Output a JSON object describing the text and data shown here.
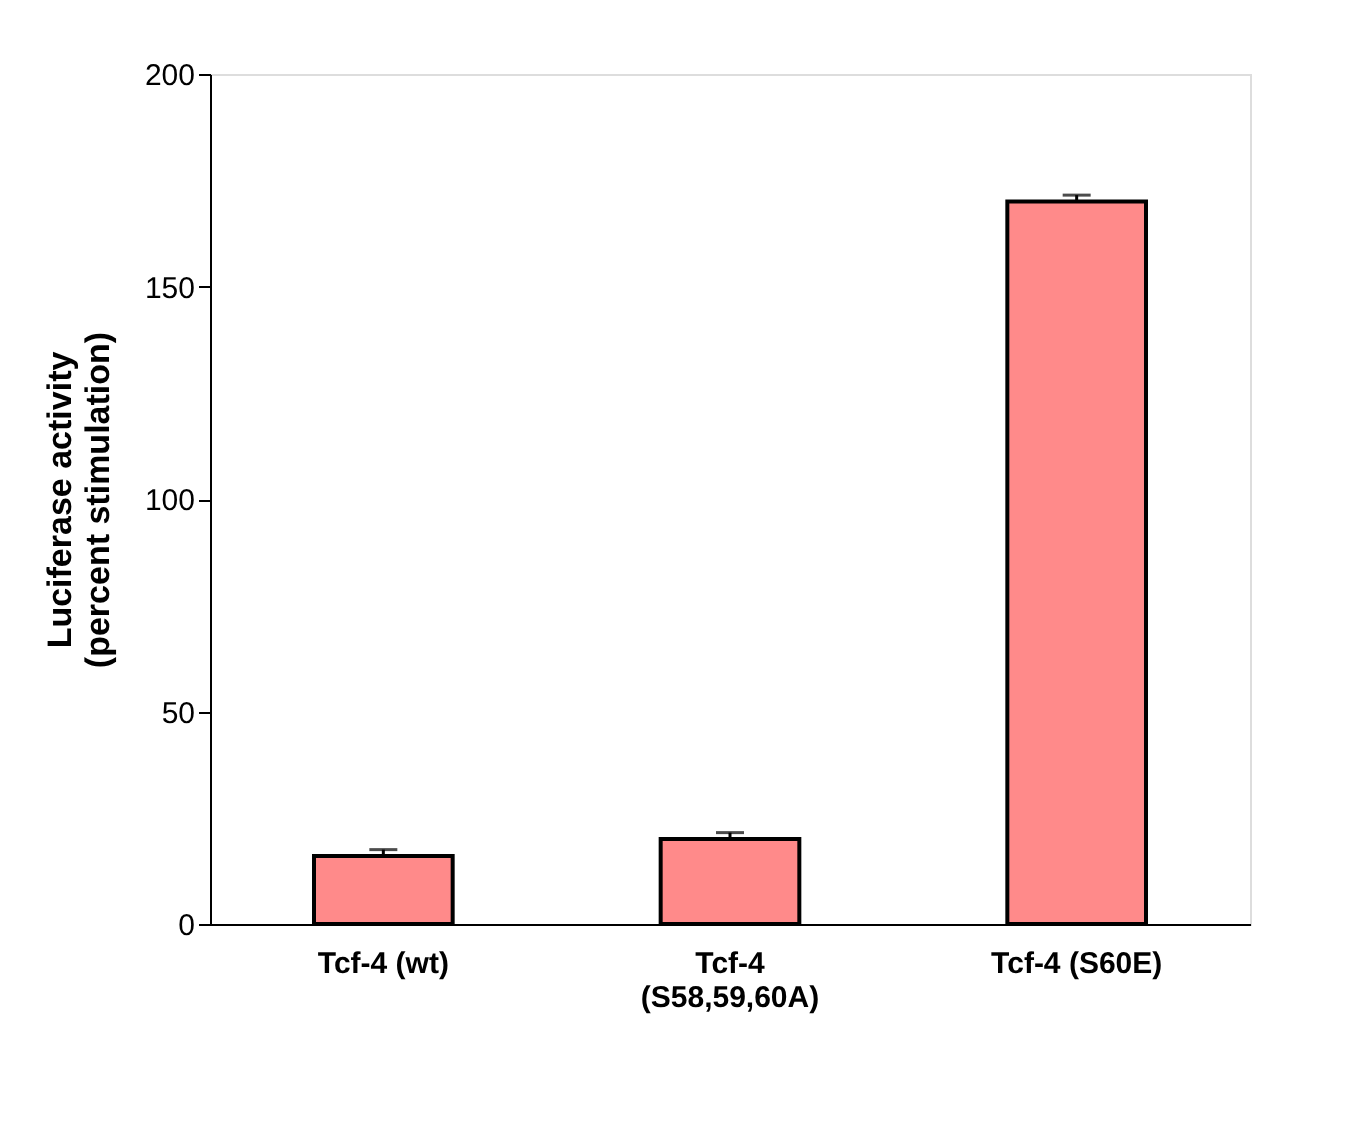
{
  "chart_data": {
    "type": "bar",
    "ylabel": "Luciferase activity\n(percent stimulation)",
    "categories": [
      "Tcf-4 (wt)",
      "Tcf-4\n(S58,59,60A)",
      "Tcf-4 (S60E)"
    ],
    "values": [
      16,
      20,
      170
    ],
    "errors": [
      1.5,
      1.5,
      1.5
    ],
    "color": "#ff8a8a",
    "ylim": [
      0,
      200
    ],
    "yticks": [
      0,
      50,
      100,
      150,
      200
    ],
    "grid": false
  }
}
